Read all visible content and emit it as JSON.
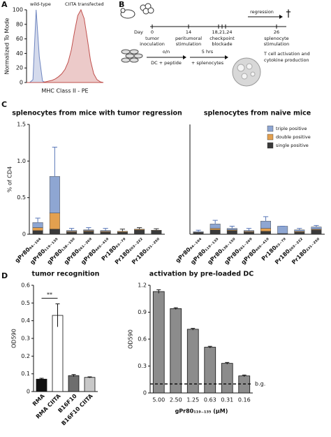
{
  "panel_labels": [
    "A",
    "B",
    "C",
    "D"
  ],
  "diagram": {
    "day": "Day",
    "days": [
      "0",
      "14",
      "18,21,24",
      "26"
    ],
    "captions": [
      [
        "tumor",
        "inoculation"
      ],
      [
        "peritumoral",
        "stimulation"
      ],
      [
        "checkpoint",
        "blockade"
      ],
      [
        "splenocyte",
        "stimulation"
      ]
    ],
    "regression": "regression",
    "death": "†",
    "step1_top": "o/n",
    "step1_bottom": "DC + peptide",
    "step2_top": "5 hrs",
    "step2_bottom": "+ splenocytes",
    "result": [
      "T cell activation and",
      "cytokine production"
    ]
  },
  "chart_data": [
    {
      "type": "area",
      "ylabel": "Normalized To Mode",
      "xlabel": "MHC Class II - PE",
      "ylim": [
        0,
        100
      ],
      "yticks": [
        0,
        20,
        40,
        60,
        80,
        100
      ],
      "legend": "top",
      "categories": [
        null,
        null,
        null,
        null,
        null,
        null,
        null,
        null,
        null,
        null,
        null,
        null,
        null,
        null,
        null,
        null,
        null,
        null,
        null,
        null,
        null,
        null,
        null,
        null,
        null
      ],
      "series": [
        {
          "name": "wild-type",
          "color": "#6f86c0",
          "values": [
            0,
            0,
            4,
            100,
            35,
            2,
            0,
            0,
            0,
            0,
            0,
            0,
            0,
            0,
            0,
            0,
            0,
            0,
            0,
            0,
            0,
            0,
            0,
            0,
            0
          ]
        },
        {
          "name": "CIITA transfected",
          "color": "#c0504d",
          "values": [
            0,
            0,
            0,
            0,
            0,
            0,
            1,
            2,
            3,
            5,
            8,
            12,
            18,
            28,
            45,
            70,
            92,
            100,
            88,
            60,
            30,
            12,
            4,
            1,
            0
          ]
        }
      ]
    },
    {
      "type": "bar",
      "stacked": true,
      "title": "splenocytes from mice with tumor regression",
      "ylabel": "% of CD4",
      "ylim": [
        0,
        1.5
      ],
      "yticks": [
        0,
        0.5,
        {
          "value": 1,
          "label": "1.0"
        },
        1.5
      ],
      "categories": [
        "gPr80₉₄₋₁₀₄",
        "gPr80₁₁₉₋₁₃₅",
        "gPr80₁₃₈₋₁₅₀",
        "gPr80₂₆₁₋₂₆₉",
        "gPr80₄₀₅₋₄₁₉",
        "Pr180₆₃₋₇₉",
        "Pr180₂₀₃₋₂₂₂",
        "Pr180₂₃₁₋₂₅₀"
      ],
      "series": [
        {
          "name": "triple positive",
          "color": "#8ea6d2",
          "values": [
            0.07,
            0.5,
            0.01,
            0.01,
            0.01,
            0,
            0,
            0
          ]
        },
        {
          "name": "double positive",
          "color": "#e3a04f",
          "values": [
            0.04,
            0.22,
            0.01,
            0.01,
            0.01,
            0.01,
            0.01,
            0.005
          ]
        },
        {
          "name": "single positive",
          "color": "#3a3a3a",
          "values": [
            0.05,
            0.07,
            0.03,
            0.04,
            0.03,
            0.03,
            0.06,
            0.05
          ]
        }
      ],
      "errors": [
        0.06,
        0.4,
        0.03,
        0.03,
        0.03,
        0.03,
        0.02,
        0.02
      ]
    },
    {
      "type": "bar",
      "stacked": true,
      "title": "splenocytes from naïve mice",
      "ylim": [
        0,
        1.5
      ],
      "legend": "upper right",
      "categories": [
        "gPr80₉₄₋₁₀₄",
        "gPr80₁₁₉₋₁₃₅",
        "gPr80₁₃₈₋₁₅₀",
        "gPr80₂₆₁₋₂₆₉",
        "gPr80₄₀₅₋₄₁₉",
        "Pr180₆₃₋₇₉",
        "Pr180₂₀₃₋₂₂₂",
        "Pr180₂₃₁₋₂₅₀"
      ],
      "series": [
        {
          "name": "triple positive",
          "color": "#8ea6d2",
          "values": [
            0.01,
            0.06,
            0.02,
            0.01,
            0.1,
            0.1,
            0.02,
            0.03
          ]
        },
        {
          "name": "double positive",
          "color": "#e3a04f",
          "values": [
            0.005,
            0.02,
            0.01,
            0.01,
            0.04,
            0,
            0.01,
            0.01
          ]
        },
        {
          "name": "single positive",
          "color": "#3a3a3a",
          "values": [
            0.02,
            0.06,
            0.05,
            0.03,
            0.04,
            0.01,
            0.03,
            0.06
          ]
        }
      ],
      "errors": [
        0.02,
        0.05,
        0.03,
        0.03,
        0.06,
        0,
        0.02,
        0.02
      ]
    },
    {
      "type": "bar",
      "title": "tumor recognition",
      "ylabel": "OD590",
      "ylim": [
        0,
        0.6
      ],
      "yticks": [
        0,
        0.1,
        0.2,
        0.3,
        0.4,
        0.5,
        0.6
      ],
      "categories": [
        "RMA",
        "RMA CIITA",
        "B16F10",
        "B16F10 CIITA"
      ],
      "values": [
        0.07,
        0.43,
        0.09,
        0.08
      ],
      "errors": [
        0.005,
        0.065,
        0.006,
        0.003
      ],
      "colors": [
        "#111111",
        "#ffffff",
        "#6e6e6e",
        "#c8c8c8"
      ],
      "annotation": "**"
    },
    {
      "type": "bar",
      "title": "activation by pre-loaded DC",
      "ylabel": "OD590",
      "xlabel": "gPr80₁₁₉₋₁₃₅ (µM)",
      "ylim": [
        0,
        1.2
      ],
      "yticks": [
        0,
        0.3,
        0.6,
        0.9,
        1.2
      ],
      "categories": [
        "5.00",
        "2.50",
        "1.25",
        "0.63",
        "0.31",
        "0.16"
      ],
      "values": [
        1.13,
        0.94,
        0.71,
        0.51,
        0.33,
        0.19
      ],
      "errors": [
        0.02,
        0.01,
        0.01,
        0.01,
        0.01,
        0.01
      ],
      "color": "#8c8c8c",
      "baseline": {
        "value": 0.1,
        "label": "b.g."
      }
    }
  ]
}
